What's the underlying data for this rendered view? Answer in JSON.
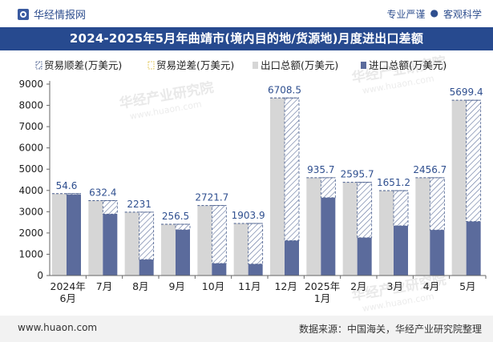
{
  "header": {
    "brand": "华经情报网",
    "tags": [
      "专业严谨",
      "客观科学"
    ],
    "tag_separator": "●"
  },
  "watermark": {
    "text": "华经产业研究院",
    "url": "www.huaon.com"
  },
  "footer": {
    "website": "www.huaon.com",
    "source": "数据来源：中国海关，华经产业研究院整理"
  },
  "chart_data": {
    "type": "bar",
    "title": "2024-2025年5月年曲靖市(境内目的地/货源地)月度进出口差额",
    "legend": [
      {
        "key": "surplus",
        "label": "贸易顺差(万美元)"
      },
      {
        "key": "deficit",
        "label": "贸易逆差(万美元)"
      },
      {
        "key": "export",
        "label": "出口总额(万美元)"
      },
      {
        "key": "import",
        "label": "进口总额(万美元)"
      }
    ],
    "categories": [
      [
        "2024年",
        "6月"
      ],
      [
        "7月"
      ],
      [
        "8月"
      ],
      [
        "9月"
      ],
      [
        "10月"
      ],
      [
        "11月"
      ],
      [
        "12月"
      ],
      [
        "2025年",
        "1月"
      ],
      [
        "2月"
      ],
      [
        "3月"
      ],
      [
        "4月"
      ],
      [
        "5月"
      ]
    ],
    "series": [
      {
        "name": "出口总额(万美元)",
        "values": [
          3850,
          3520,
          2980,
          2410,
          3290,
          2450,
          8350,
          4600,
          4380,
          3990,
          4600,
          8240
        ]
      },
      {
        "name": "进口总额(万美元)",
        "values": [
          3800,
          2890,
          750,
          2150,
          570,
          540,
          1640,
          3660,
          1780,
          2340,
          2140,
          2540
        ]
      }
    ],
    "balance": [
      {
        "label": "54.6",
        "type": "surplus"
      },
      {
        "label": "632.4",
        "type": "surplus"
      },
      {
        "label": "2231",
        "type": "surplus"
      },
      {
        "label": "256.5",
        "type": "surplus"
      },
      {
        "label": "2721.7",
        "type": "surplus"
      },
      {
        "label": "1903.9",
        "type": "surplus"
      },
      {
        "label": "6708.5",
        "type": "surplus"
      },
      {
        "label": "935.7",
        "type": "surplus"
      },
      {
        "label": "2595.7",
        "type": "surplus"
      },
      {
        "label": "1651.2",
        "type": "surplus"
      },
      {
        "label": "2456.7",
        "type": "surplus"
      },
      {
        "label": "5699.4",
        "type": "surplus"
      }
    ],
    "ylim": [
      0,
      9000
    ],
    "yticks": [
      0,
      1000,
      2000,
      3000,
      4000,
      5000,
      6000,
      7000,
      8000,
      9000
    ],
    "colors": {
      "export": "#d6d6d6",
      "import": "#5b6b9c",
      "hatch_line": "#5c6e9a",
      "dash": "#4a5f8e",
      "axis": "#666666",
      "text": "#222222",
      "label": "#2f4f8f"
    }
  }
}
